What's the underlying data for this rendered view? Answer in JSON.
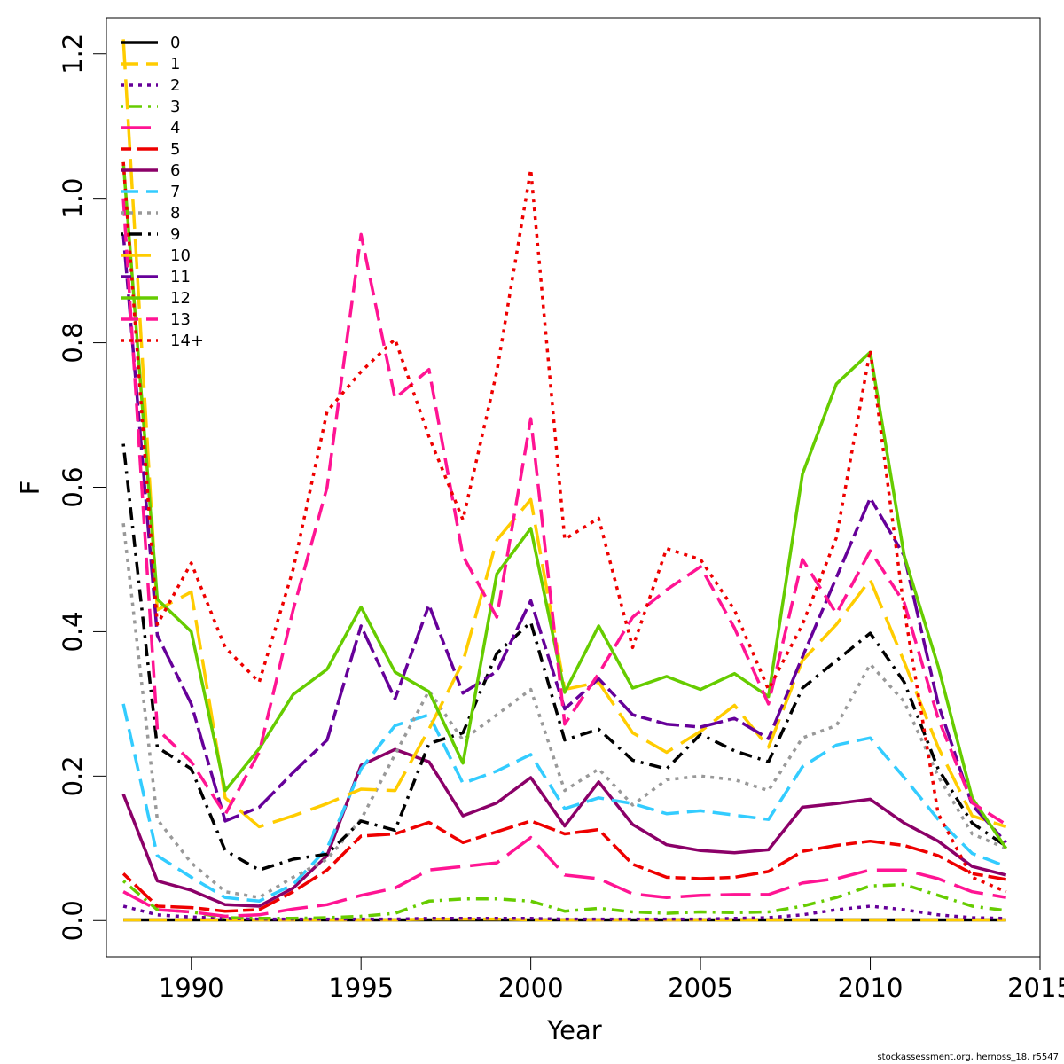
{
  "chart_data": {
    "type": "line",
    "xlabel": "Year",
    "ylabel": "F",
    "xlim": [
      1987.5,
      2015
    ],
    "ylim": [
      -0.05,
      1.25
    ],
    "x_ticks": [
      1990,
      1995,
      2000,
      2005,
      2010,
      2015
    ],
    "y_ticks": [
      0.0,
      0.2,
      0.4,
      0.6,
      0.8,
      1.0,
      1.2
    ],
    "x_tick_labels": [
      "1990",
      "1995",
      "2000",
      "2005",
      "2010",
      "2015"
    ],
    "y_tick_labels": [
      "0.0",
      "0.2",
      "0.4",
      "0.6",
      "0.8",
      "1.0",
      "1.2"
    ],
    "legend_position": "top-left",
    "grid": false,
    "credit": "stockassessment.org, hernoss_18, r5547",
    "x": [
      1988,
      1989,
      1990,
      1991,
      1992,
      1993,
      1994,
      1995,
      1996,
      1997,
      1998,
      1999,
      2000,
      2001,
      2002,
      2003,
      2004,
      2005,
      2006,
      2007,
      2008,
      2009,
      2010,
      2011,
      2012,
      2013,
      2014
    ],
    "series": [
      {
        "name": "0",
        "color": "#000000",
        "dash": "solid",
        "values": [
          0.001,
          0.001,
          0.001,
          0.001,
          0.001,
          0.001,
          0.001,
          0.001,
          0.001,
          0.001,
          0.001,
          0.001,
          0.001,
          0.001,
          0.001,
          0.001,
          0.001,
          0.001,
          0.001,
          0.001,
          0.001,
          0.001,
          0.001,
          0.001,
          0.001,
          0.001,
          0.001
        ]
      },
      {
        "name": "1",
        "color": "#FFCC00",
        "dash": "dashed",
        "values": [
          0.001,
          0.001,
          0.001,
          0.001,
          0.001,
          0.001,
          0.001,
          0.001,
          0.001,
          0.002,
          0.002,
          0.002,
          0.001,
          0.001,
          0.001,
          0.001,
          0.001,
          0.001,
          0.001,
          0.001,
          0.001,
          0.001,
          0.001,
          0.001,
          0.001,
          0.001,
          0.001
        ]
      },
      {
        "name": "2",
        "color": "#660099",
        "dash": "dotted",
        "values": [
          0.02,
          0.008,
          0.005,
          0.003,
          0.002,
          0.002,
          0.002,
          0.002,
          0.002,
          0.003,
          0.003,
          0.003,
          0.003,
          0.002,
          0.002,
          0.002,
          0.002,
          0.002,
          0.003,
          0.004,
          0.008,
          0.015,
          0.02,
          0.015,
          0.008,
          0.004,
          0.003
        ]
      },
      {
        "name": "3",
        "color": "#66CC00",
        "dash": "dotdash",
        "values": [
          0.055,
          0.015,
          0.012,
          0.004,
          0.003,
          0.003,
          0.004,
          0.006,
          0.01,
          0.027,
          0.03,
          0.03,
          0.027,
          0.013,
          0.017,
          0.012,
          0.01,
          0.012,
          0.011,
          0.012,
          0.02,
          0.032,
          0.048,
          0.05,
          0.035,
          0.02,
          0.014
        ]
      },
      {
        "name": "4",
        "color": "#FF1493",
        "dash": "longdash",
        "values": [
          0.04,
          0.015,
          0.012,
          0.006,
          0.008,
          0.016,
          0.022,
          0.035,
          0.045,
          0.07,
          0.075,
          0.08,
          0.115,
          0.063,
          0.058,
          0.037,
          0.032,
          0.035,
          0.036,
          0.036,
          0.052,
          0.058,
          0.07,
          0.07,
          0.058,
          0.04,
          0.032
        ]
      },
      {
        "name": "5",
        "color": "#EE0000",
        "dash": "twodash",
        "values": [
          0.065,
          0.02,
          0.018,
          0.013,
          0.015,
          0.04,
          0.07,
          0.117,
          0.12,
          0.136,
          0.108,
          0.123,
          0.138,
          0.12,
          0.126,
          0.078,
          0.06,
          0.058,
          0.06,
          0.068,
          0.096,
          0.104,
          0.11,
          0.104,
          0.09,
          0.065,
          0.057
        ]
      },
      {
        "name": "6",
        "color": "#8B0068",
        "dash": "solid",
        "values": [
          0.175,
          0.055,
          0.042,
          0.022,
          0.02,
          0.045,
          0.09,
          0.215,
          0.237,
          0.22,
          0.145,
          0.163,
          0.198,
          0.131,
          0.192,
          0.133,
          0.105,
          0.097,
          0.094,
          0.098,
          0.157,
          0.162,
          0.168,
          0.135,
          0.11,
          0.075,
          0.063
        ]
      },
      {
        "name": "7",
        "color": "#33CCFF",
        "dash": "dashed",
        "values": [
          0.3,
          0.09,
          0.06,
          0.032,
          0.027,
          0.05,
          0.1,
          0.21,
          0.27,
          0.285,
          0.19,
          0.207,
          0.23,
          0.155,
          0.17,
          0.162,
          0.148,
          0.152,
          0.146,
          0.14,
          0.213,
          0.243,
          0.253,
          0.198,
          0.14,
          0.093,
          0.075
        ]
      },
      {
        "name": "8",
        "color": "#999999",
        "dash": "dotted",
        "values": [
          0.55,
          0.14,
          0.08,
          0.04,
          0.032,
          0.06,
          0.085,
          0.14,
          0.23,
          0.318,
          0.25,
          0.285,
          0.32,
          0.18,
          0.21,
          0.16,
          0.195,
          0.2,
          0.195,
          0.18,
          0.253,
          0.27,
          0.355,
          0.303,
          0.2,
          0.12,
          0.1
        ]
      },
      {
        "name": "9",
        "color": "#000000",
        "dash": "dotdash",
        "values": [
          0.66,
          0.24,
          0.21,
          0.097,
          0.07,
          0.085,
          0.092,
          0.138,
          0.125,
          0.245,
          0.26,
          0.37,
          0.413,
          0.25,
          0.265,
          0.222,
          0.21,
          0.258,
          0.235,
          0.22,
          0.322,
          0.36,
          0.398,
          0.33,
          0.21,
          0.135,
          0.103
        ]
      },
      {
        "name": "10",
        "color": "#FFCC00",
        "dash": "longdash",
        "values": [
          1.22,
          0.43,
          0.455,
          0.17,
          0.13,
          0.145,
          0.162,
          0.182,
          0.18,
          0.265,
          0.358,
          0.527,
          0.583,
          0.32,
          0.33,
          0.26,
          0.233,
          0.262,
          0.298,
          0.24,
          0.36,
          0.41,
          0.472,
          0.358,
          0.24,
          0.145,
          0.13
        ]
      },
      {
        "name": "11",
        "color": "#660099",
        "dash": "twodash",
        "values": [
          0.95,
          0.395,
          0.3,
          0.138,
          0.157,
          0.205,
          0.25,
          0.408,
          0.307,
          0.437,
          0.315,
          0.345,
          0.443,
          0.293,
          0.335,
          0.285,
          0.272,
          0.268,
          0.28,
          0.252,
          0.365,
          0.475,
          0.585,
          0.505,
          0.3,
          0.16,
          0.108
        ]
      },
      {
        "name": "12",
        "color": "#66CC00",
        "dash": "solid",
        "values": [
          1.05,
          0.445,
          0.4,
          0.18,
          0.238,
          0.313,
          0.348,
          0.434,
          0.344,
          0.317,
          0.218,
          0.48,
          0.543,
          0.316,
          0.408,
          0.322,
          0.338,
          0.32,
          0.342,
          0.31,
          0.618,
          0.743,
          0.787,
          0.505,
          0.352,
          0.17,
          0.1
        ]
      },
      {
        "name": "13",
        "color": "#FF1493",
        "dash": "dashed",
        "values": [
          1.0,
          0.265,
          0.22,
          0.147,
          0.233,
          0.43,
          0.6,
          0.95,
          0.723,
          0.763,
          0.505,
          0.42,
          0.695,
          0.272,
          0.342,
          0.42,
          0.458,
          0.49,
          0.405,
          0.3,
          0.5,
          0.425,
          0.512,
          0.44,
          0.28,
          0.163,
          0.133
        ]
      },
      {
        "name": "14+",
        "color": "#EE0000",
        "dash": "dotted",
        "values": [
          1.05,
          0.41,
          0.495,
          0.378,
          0.33,
          0.486,
          0.705,
          0.76,
          0.805,
          0.67,
          0.555,
          0.76,
          1.04,
          0.528,
          0.557,
          0.378,
          0.515,
          0.5,
          0.43,
          0.32,
          0.41,
          0.53,
          0.79,
          0.43,
          0.148,
          0.06,
          0.04
        ]
      }
    ]
  }
}
